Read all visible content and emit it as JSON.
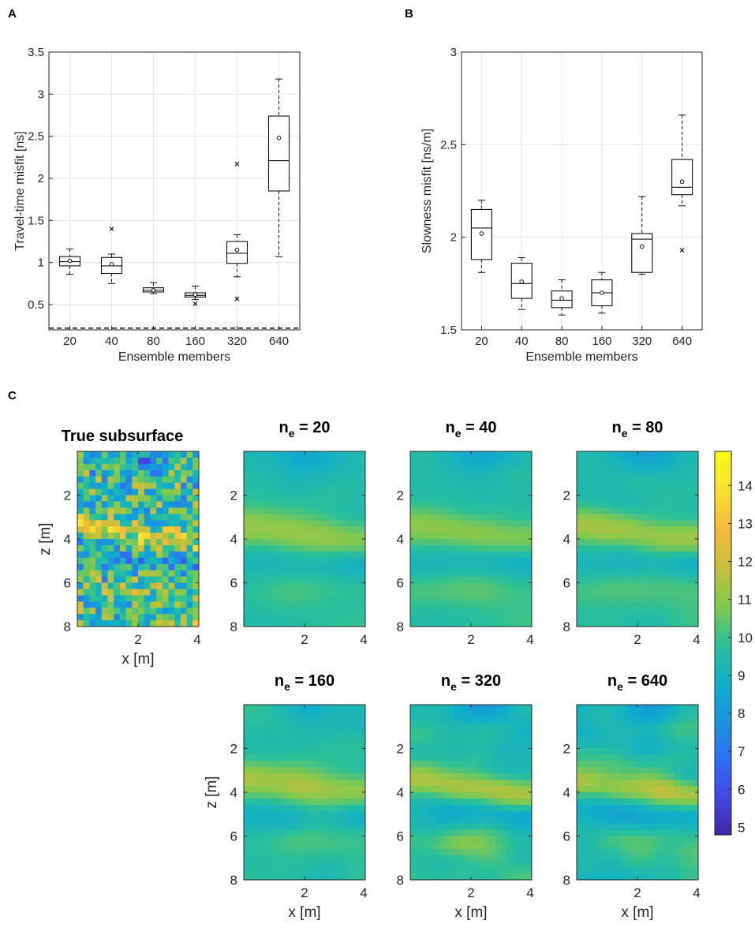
{
  "panel_labels": {
    "a": "A",
    "b": "B",
    "c": "C"
  },
  "chart_data": [
    {
      "type": "box",
      "panel": "A",
      "xlabel": "Ensemble members",
      "ylabel": "Travel-time misfit [ns]",
      "categories": [
        "20",
        "40",
        "80",
        "160",
        "320",
        "640"
      ],
      "ylim": [
        0.2,
        3.5
      ],
      "yticks": [
        "0.5",
        "1",
        "1.5",
        "2",
        "2.5",
        "3",
        "3.5"
      ],
      "grid": true,
      "reference_line": 0.22,
      "boxes": [
        {
          "lo": 0.86,
          "q1": 0.96,
          "median": 1.01,
          "q3": 1.07,
          "hi": 1.16,
          "mean": 1.02,
          "outliers": []
        },
        {
          "lo": 0.75,
          "q1": 0.87,
          "median": 0.96,
          "q3": 1.06,
          "hi": 1.1,
          "mean": 0.98,
          "outliers": [
            1.4
          ]
        },
        {
          "lo": 0.63,
          "q1": 0.65,
          "median": 0.67,
          "q3": 0.7,
          "hi": 0.76,
          "mean": 0.67,
          "outliers": []
        },
        {
          "lo": 0.56,
          "q1": 0.59,
          "median": 0.61,
          "q3": 0.64,
          "hi": 0.72,
          "mean": 0.62,
          "outliers": [
            0.51
          ]
        },
        {
          "lo": 0.83,
          "q1": 0.99,
          "median": 1.11,
          "q3": 1.25,
          "hi": 1.33,
          "mean": 1.15,
          "outliers": [
            2.17,
            0.57
          ]
        },
        {
          "lo": 1.07,
          "q1": 1.85,
          "median": 2.21,
          "q3": 2.74,
          "hi": 3.18,
          "mean": 2.48,
          "outliers": []
        }
      ]
    },
    {
      "type": "box",
      "panel": "B",
      "xlabel": "Ensemble members",
      "ylabel": "Slowness misfit [ns/m]",
      "categories": [
        "20",
        "40",
        "80",
        "160",
        "320",
        "640"
      ],
      "ylim": [
        1.5,
        3.0
      ],
      "yticks": [
        "1.5",
        "2",
        "2.5",
        "3"
      ],
      "grid": true,
      "boxes": [
        {
          "lo": 1.81,
          "q1": 1.88,
          "median": 2.05,
          "q3": 2.15,
          "hi": 2.2,
          "mean": 2.02,
          "outliers": []
        },
        {
          "lo": 1.61,
          "q1": 1.67,
          "median": 1.75,
          "q3": 1.86,
          "hi": 1.89,
          "mean": 1.76,
          "outliers": []
        },
        {
          "lo": 1.58,
          "q1": 1.62,
          "median": 1.66,
          "q3": 1.71,
          "hi": 1.77,
          "mean": 1.67,
          "outliers": []
        },
        {
          "lo": 1.59,
          "q1": 1.63,
          "median": 1.7,
          "q3": 1.77,
          "hi": 1.81,
          "mean": 1.7,
          "outliers": []
        },
        {
          "lo": 1.8,
          "q1": 1.81,
          "median": 1.99,
          "q3": 2.02,
          "hi": 2.22,
          "mean": 1.95,
          "outliers": []
        },
        {
          "lo": 2.17,
          "q1": 2.23,
          "median": 2.27,
          "q3": 2.42,
          "hi": 2.66,
          "mean": 2.3,
          "outliers": [
            1.93
          ]
        }
      ]
    },
    {
      "type": "heatmap",
      "panel": "C",
      "xlabel": "x [m]",
      "ylabel": "z [m]",
      "xticks": [
        "2",
        "4"
      ],
      "yticks": [
        "2",
        "4",
        "6",
        "8"
      ],
      "xlim": [
        0,
        4
      ],
      "ylim": [
        0,
        8
      ],
      "colorbar": {
        "min": 4.8,
        "max": 14.9,
        "ticks": [
          "5",
          "6",
          "7",
          "8",
          "9",
          "10",
          "11",
          "12",
          "13",
          "14"
        ]
      },
      "colors": [
        "#3e26a8",
        "#4546e4",
        "#2f6ff6",
        "#1a94dd",
        "#0fb0c9",
        "#2bbf9a",
        "#80c94f",
        "#c6bf3b",
        "#f6b93d",
        "#f9e02f",
        "#f9fb15"
      ],
      "maps": [
        {
          "title": "True subsurface",
          "seed": 11,
          "smooth": 0,
          "noise": 0.45,
          "jitter": 0.8
        },
        {
          "title_main": "n",
          "title_sub": "e",
          "title_rest": " = 20",
          "seed": 2,
          "smooth": 4,
          "noise": 0.55,
          "jitter": 0.35
        },
        {
          "title_main": "n",
          "title_sub": "e",
          "title_rest": " = 40",
          "seed": 3,
          "smooth": 4,
          "noise": 0.65,
          "jitter": 0.35
        },
        {
          "title_main": "n",
          "title_sub": "e",
          "title_rest": " = 80",
          "seed": 4,
          "smooth": 3,
          "noise": 0.7,
          "jitter": 0.4
        },
        {
          "title_main": "n",
          "title_sub": "e",
          "title_rest": " = 160",
          "seed": 5,
          "smooth": 3,
          "noise": 0.8,
          "jitter": 0.5
        },
        {
          "title_main": "n",
          "title_sub": "e",
          "title_rest": " = 320",
          "seed": 6,
          "smooth": 2,
          "noise": 0.9,
          "jitter": 0.6
        },
        {
          "title_main": "n",
          "title_sub": "e",
          "title_rest": " = 640",
          "seed": 7,
          "smooth": 2,
          "noise": 1.0,
          "jitter": 0.7
        }
      ]
    }
  ]
}
